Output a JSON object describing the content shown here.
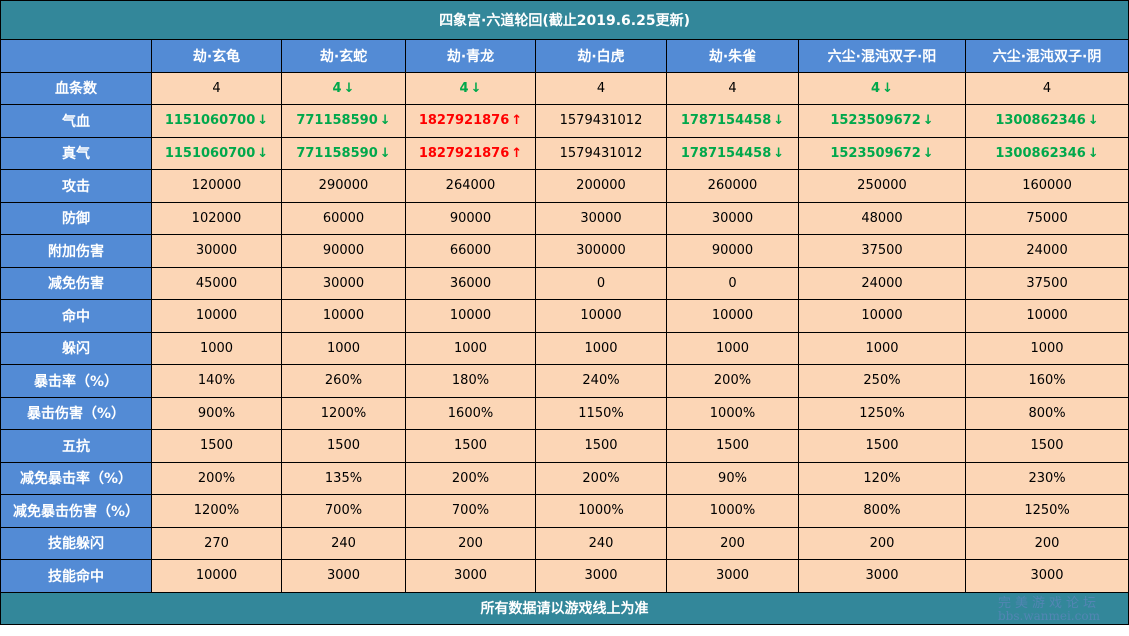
{
  "title": "四象宫·六道轮回(截止2019.6.25更新)",
  "footer": "所有数据请以游戏线上为准",
  "watermark": {
    "line1": "完美游戏论坛",
    "line2": "bbs.wanmei.com"
  },
  "colors": {
    "title_bg": "#33879a",
    "header_bg": "#538bd5",
    "cell_bg": "#fcd6b6",
    "down": "#00a84b",
    "up": "#ff0000"
  },
  "columns": [
    "",
    "劫·玄龟",
    "劫·玄蛇",
    "劫·青龙",
    "劫·白虎",
    "劫·朱雀",
    "六尘·混沌双子·阳",
    "六尘·混沌双子·阴"
  ],
  "rows": [
    {
      "label": "血条数",
      "cells": [
        {
          "v": "4"
        },
        {
          "v": "4",
          "t": "down"
        },
        {
          "v": "4",
          "t": "down"
        },
        {
          "v": "4"
        },
        {
          "v": "4"
        },
        {
          "v": "4",
          "t": "down"
        },
        {
          "v": "4"
        }
      ]
    },
    {
      "label": "气血",
      "cells": [
        {
          "v": "1151060700",
          "t": "down"
        },
        {
          "v": "771158590",
          "t": "down"
        },
        {
          "v": "1827921876",
          "t": "up"
        },
        {
          "v": "1579431012"
        },
        {
          "v": "1787154458",
          "t": "down"
        },
        {
          "v": "1523509672",
          "t": "down"
        },
        {
          "v": "1300862346",
          "t": "down"
        }
      ]
    },
    {
      "label": "真气",
      "cells": [
        {
          "v": "1151060700",
          "t": "down"
        },
        {
          "v": "771158590",
          "t": "down"
        },
        {
          "v": "1827921876",
          "t": "up"
        },
        {
          "v": "1579431012"
        },
        {
          "v": "1787154458",
          "t": "down"
        },
        {
          "v": "1523509672",
          "t": "down"
        },
        {
          "v": "1300862346",
          "t": "down"
        }
      ]
    },
    {
      "label": "攻击",
      "cells": [
        {
          "v": "120000"
        },
        {
          "v": "290000"
        },
        {
          "v": "264000"
        },
        {
          "v": "200000"
        },
        {
          "v": "260000"
        },
        {
          "v": "250000"
        },
        {
          "v": "160000"
        }
      ]
    },
    {
      "label": "防御",
      "cells": [
        {
          "v": "102000"
        },
        {
          "v": "60000"
        },
        {
          "v": "90000"
        },
        {
          "v": "30000"
        },
        {
          "v": "30000"
        },
        {
          "v": "48000"
        },
        {
          "v": "75000"
        }
      ]
    },
    {
      "label": "附加伤害",
      "cells": [
        {
          "v": "30000"
        },
        {
          "v": "90000"
        },
        {
          "v": "66000"
        },
        {
          "v": "300000"
        },
        {
          "v": "90000"
        },
        {
          "v": "37500"
        },
        {
          "v": "24000"
        }
      ]
    },
    {
      "label": "减免伤害",
      "cells": [
        {
          "v": "45000"
        },
        {
          "v": "30000"
        },
        {
          "v": "36000"
        },
        {
          "v": "0"
        },
        {
          "v": "0"
        },
        {
          "v": "24000"
        },
        {
          "v": "37500"
        }
      ]
    },
    {
      "label": "命中",
      "cells": [
        {
          "v": "10000"
        },
        {
          "v": "10000"
        },
        {
          "v": "10000"
        },
        {
          "v": "10000"
        },
        {
          "v": "10000"
        },
        {
          "v": "10000"
        },
        {
          "v": "10000"
        }
      ]
    },
    {
      "label": "躲闪",
      "cells": [
        {
          "v": "1000"
        },
        {
          "v": "1000"
        },
        {
          "v": "1000"
        },
        {
          "v": "1000"
        },
        {
          "v": "1000"
        },
        {
          "v": "1000"
        },
        {
          "v": "1000"
        }
      ]
    },
    {
      "label": "暴击率（%）",
      "cells": [
        {
          "v": "140%"
        },
        {
          "v": "260%"
        },
        {
          "v": "180%"
        },
        {
          "v": "240%"
        },
        {
          "v": "200%"
        },
        {
          "v": "250%"
        },
        {
          "v": "160%"
        }
      ]
    },
    {
      "label": "暴击伤害（%）",
      "cells": [
        {
          "v": "900%"
        },
        {
          "v": "1200%"
        },
        {
          "v": "1600%"
        },
        {
          "v": "1150%"
        },
        {
          "v": "1000%"
        },
        {
          "v": "1250%"
        },
        {
          "v": "800%"
        }
      ]
    },
    {
      "label": "五抗",
      "cells": [
        {
          "v": "1500"
        },
        {
          "v": "1500"
        },
        {
          "v": "1500"
        },
        {
          "v": "1500"
        },
        {
          "v": "1500"
        },
        {
          "v": "1500"
        },
        {
          "v": "1500"
        }
      ]
    },
    {
      "label": "减免暴击率（%）",
      "cells": [
        {
          "v": "200%"
        },
        {
          "v": "135%"
        },
        {
          "v": "200%"
        },
        {
          "v": "200%"
        },
        {
          "v": "90%"
        },
        {
          "v": "120%"
        },
        {
          "v": "230%"
        }
      ]
    },
    {
      "label": "减免暴击伤害（%）",
      "cells": [
        {
          "v": "1200%"
        },
        {
          "v": "700%"
        },
        {
          "v": "700%"
        },
        {
          "v": "1000%"
        },
        {
          "v": "1000%"
        },
        {
          "v": "800%"
        },
        {
          "v": "1250%"
        }
      ]
    },
    {
      "label": "技能躲闪",
      "cells": [
        {
          "v": "270"
        },
        {
          "v": "240"
        },
        {
          "v": "200"
        },
        {
          "v": "240"
        },
        {
          "v": "200"
        },
        {
          "v": "200"
        },
        {
          "v": "200"
        }
      ]
    },
    {
      "label": "技能命中",
      "cells": [
        {
          "v": "10000"
        },
        {
          "v": "3000"
        },
        {
          "v": "3000"
        },
        {
          "v": "3000"
        },
        {
          "v": "3000"
        },
        {
          "v": "3000"
        },
        {
          "v": "3000"
        }
      ]
    }
  ]
}
